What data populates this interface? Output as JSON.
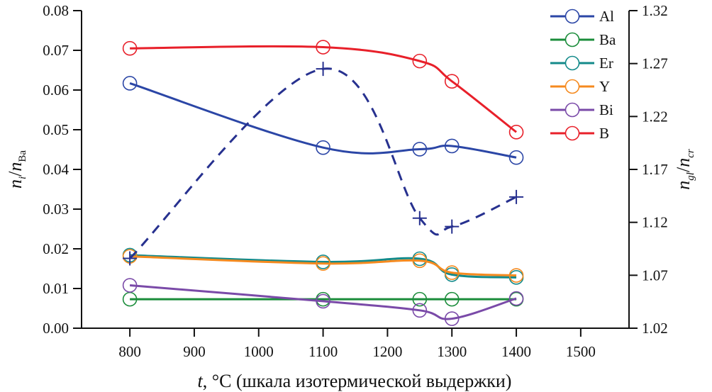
{
  "chart_data": {
    "type": "line",
    "title": "",
    "x": [
      800,
      1100,
      1250,
      1300,
      1400
    ],
    "xlabel": "t, °C (шкала изотермической выдержки)",
    "xlabel_italic": "t",
    "xlabel_rest": ", °C (шкала изотермической выдержки)",
    "xlim": [
      725,
      1575
    ],
    "xticks": [
      800,
      900,
      1000,
      1100,
      1200,
      1300,
      1400,
      1500
    ],
    "xtick_labels": [
      "800",
      "900",
      "1000",
      "1100",
      "1200",
      "1300",
      "1400",
      "1500"
    ],
    "ylabel": "n_i/n_Ba",
    "ylabel_parts": {
      "n1": "n",
      "sub1": "i",
      "slash": "/",
      "n2": "n",
      "sub2": "Ba"
    },
    "ylim": [
      0,
      0.08
    ],
    "yticks": [
      0,
      0.01,
      0.02,
      0.03,
      0.04,
      0.05,
      0.06,
      0.07,
      0.08
    ],
    "ytick_labels": [
      "0.00",
      "0.01",
      "0.02",
      "0.03",
      "0.04",
      "0.05",
      "0.06",
      "0.07",
      "0.08"
    ],
    "y2label": "n_gl/n_cr",
    "y2label_parts": {
      "n1": "n",
      "sub1": "gl",
      "slash": "/",
      "n2": "n",
      "sub2": "cr"
    },
    "y2lim": [
      1.02,
      1.32
    ],
    "y2ticks": [
      1.02,
      1.07,
      1.12,
      1.17,
      1.22,
      1.27,
      1.32
    ],
    "y2tick_labels": [
      "1.02",
      "1.07",
      "1.12",
      "1.17",
      "1.22",
      "1.27",
      "1.32"
    ],
    "grid": false,
    "legend_position": "top-right",
    "series": [
      {
        "name": "Al",
        "color": "#2b46a6",
        "marker": "circle",
        "axis": "left",
        "values": [
          0.0617,
          0.0455,
          0.0451,
          0.0459,
          0.043
        ]
      },
      {
        "name": "Ba",
        "color": "#1a8c3a",
        "marker": "circle",
        "axis": "left",
        "values": [
          0.0073,
          0.0073,
          0.0073,
          0.0073,
          0.0073
        ]
      },
      {
        "name": "Er",
        "color": "#138a8a",
        "marker": "circle",
        "axis": "left",
        "values": [
          0.0184,
          0.0167,
          0.0175,
          0.0135,
          0.0128
        ]
      },
      {
        "name": "Y",
        "color": "#f58a1f",
        "marker": "circle",
        "axis": "left",
        "values": [
          0.0181,
          0.0163,
          0.017,
          0.014,
          0.0133
        ]
      },
      {
        "name": "Bi",
        "color": "#7a4aa8",
        "marker": "circle",
        "axis": "left",
        "values": [
          0.0108,
          0.0068,
          0.0045,
          0.0024,
          0.0075
        ]
      },
      {
        "name": "B",
        "color": "#e8202a",
        "marker": "circle",
        "axis": "left",
        "values": [
          0.0705,
          0.0708,
          0.0673,
          0.0622,
          0.0494
        ]
      },
      {
        "name": "n_gl/n_cr",
        "color": "#27318f",
        "marker": "plus",
        "axis": "right",
        "dashed": true,
        "in_legend": false,
        "values": [
          1.086,
          1.265,
          1.124,
          1.116,
          1.144
        ]
      }
    ]
  }
}
